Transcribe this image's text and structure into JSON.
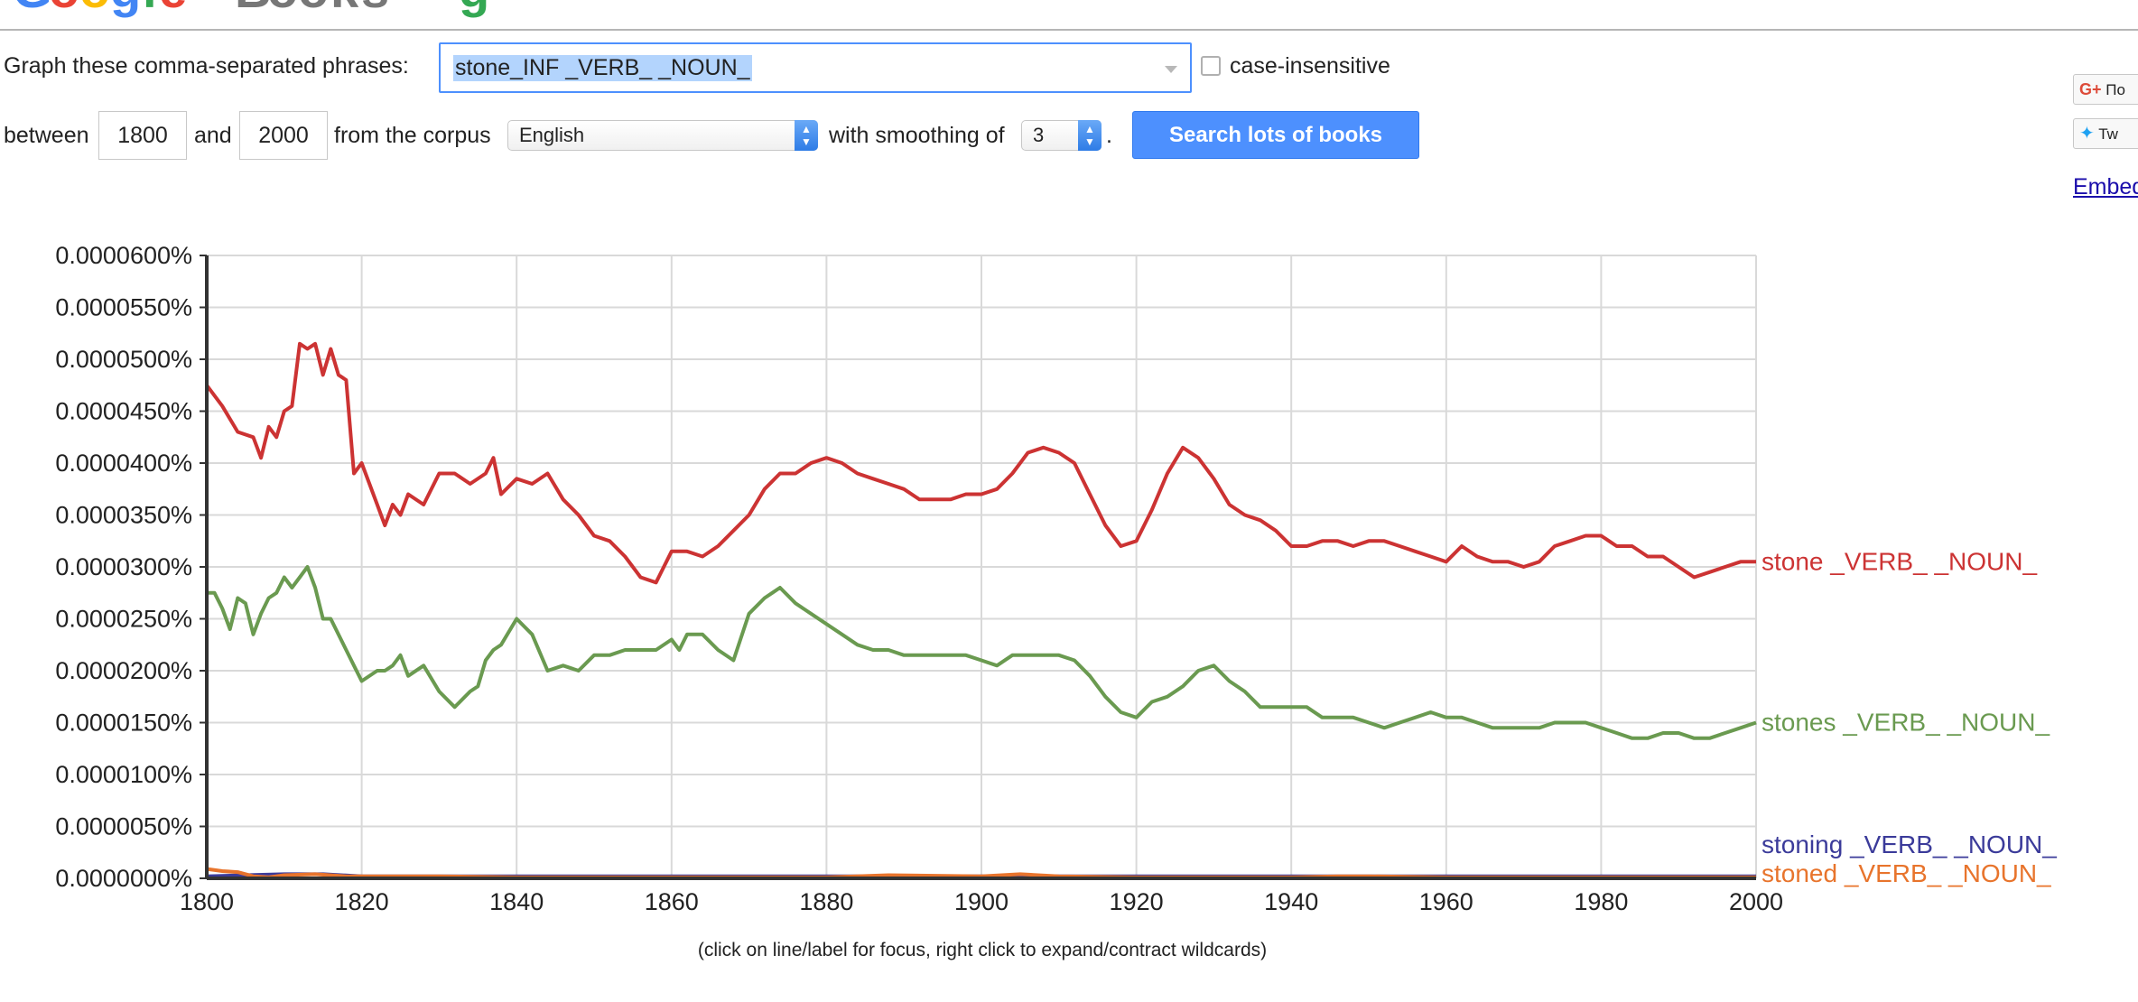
{
  "form": {
    "phrases_label": "Graph these comma-separated phrases:",
    "phrases_value": "stone_INF _VERB_ _NOUN_",
    "case_insensitive_label": "case-insensitive",
    "between_label": "between",
    "start_year": "1800",
    "and_label": "and",
    "end_year": "2000",
    "corpus_label": "from the corpus",
    "corpus_value": "English",
    "smoothing_label": "with smoothing of",
    "smoothing_value": "3",
    "period": ".",
    "search_button": "Search lots of books"
  },
  "share": {
    "gplus_label": "По",
    "twitter_label": "Tw",
    "embed_label": "Embed"
  },
  "footnote": "(click on line/label for focus, right click to expand/contract wildcards)",
  "colors": {
    "stone": "#cc3333",
    "stones": "#6a9a50",
    "stoning": "#3b3b9a",
    "stoned": "#e8742c",
    "accent": "#4d90fe"
  },
  "chart_data": {
    "type": "line",
    "xlim": [
      1800,
      2000
    ],
    "ylim": [
      0,
      6e-05
    ],
    "x_ticks": [
      "1800",
      "1820",
      "1840",
      "1860",
      "1880",
      "1900",
      "1920",
      "1940",
      "1960",
      "1980",
      "2000"
    ],
    "y_ticks": [
      "0.0000000%",
      "0.0000050%",
      "0.0000100%",
      "0.0000150%",
      "0.0000200%",
      "0.0000250%",
      "0.0000300%",
      "0.0000350%",
      "0.0000400%",
      "0.0000450%",
      "0.0000500%",
      "0.0000550%",
      "0.0000600%"
    ],
    "grid": true,
    "series": [
      {
        "name": "stone _VERB_ _NOUN_",
        "color_key": "stone",
        "x": [
          1800,
          1802,
          1804,
          1806,
          1807,
          1808,
          1809,
          1810,
          1811,
          1812,
          1813,
          1814,
          1815,
          1816,
          1817,
          1818,
          1819,
          1820,
          1822,
          1823,
          1824,
          1825,
          1826,
          1828,
          1830,
          1832,
          1834,
          1836,
          1837,
          1838,
          1840,
          1842,
          1844,
          1846,
          1848,
          1850,
          1852,
          1854,
          1856,
          1858,
          1860,
          1862,
          1864,
          1866,
          1868,
          1870,
          1872,
          1874,
          1876,
          1878,
          1880,
          1882,
          1884,
          1886,
          1888,
          1890,
          1892,
          1894,
          1896,
          1898,
          1900,
          1902,
          1904,
          1906,
          1908,
          1910,
          1912,
          1914,
          1916,
          1918,
          1920,
          1922,
          1924,
          1926,
          1928,
          1930,
          1932,
          1934,
          1936,
          1938,
          1940,
          1942,
          1944,
          1946,
          1948,
          1950,
          1952,
          1954,
          1956,
          1958,
          1960,
          1962,
          1964,
          1966,
          1968,
          1970,
          1972,
          1974,
          1976,
          1978,
          1980,
          1982,
          1984,
          1986,
          1988,
          1990,
          1992,
          1994,
          1996,
          1998,
          2000
        ],
        "y": [
          4.75e-05,
          4.55e-05,
          4.3e-05,
          4.25e-05,
          4.05e-05,
          4.35e-05,
          4.25e-05,
          4.5e-05,
          4.55e-05,
          5.15e-05,
          5.1e-05,
          5.15e-05,
          4.85e-05,
          5.1e-05,
          4.85e-05,
          4.8e-05,
          3.9e-05,
          4e-05,
          3.6e-05,
          3.4e-05,
          3.6e-05,
          3.5e-05,
          3.7e-05,
          3.6e-05,
          3.9e-05,
          3.9e-05,
          3.8e-05,
          3.9e-05,
          4.05e-05,
          3.7e-05,
          3.85e-05,
          3.8e-05,
          3.9e-05,
          3.65e-05,
          3.5e-05,
          3.3e-05,
          3.25e-05,
          3.1e-05,
          2.9e-05,
          2.85e-05,
          3.15e-05,
          3.15e-05,
          3.1e-05,
          3.2e-05,
          3.35e-05,
          3.5e-05,
          3.75e-05,
          3.9e-05,
          3.9e-05,
          4e-05,
          4.05e-05,
          4e-05,
          3.9e-05,
          3.85e-05,
          3.8e-05,
          3.75e-05,
          3.65e-05,
          3.65e-05,
          3.65e-05,
          3.7e-05,
          3.7e-05,
          3.75e-05,
          3.9e-05,
          4.1e-05,
          4.15e-05,
          4.1e-05,
          4e-05,
          3.7e-05,
          3.4e-05,
          3.2e-05,
          3.25e-05,
          3.55e-05,
          3.9e-05,
          4.15e-05,
          4.05e-05,
          3.85e-05,
          3.6e-05,
          3.5e-05,
          3.45e-05,
          3.35e-05,
          3.2e-05,
          3.2e-05,
          3.25e-05,
          3.25e-05,
          3.2e-05,
          3.25e-05,
          3.25e-05,
          3.2e-05,
          3.15e-05,
          3.1e-05,
          3.05e-05,
          3.2e-05,
          3.1e-05,
          3.05e-05,
          3.05e-05,
          3e-05,
          3.05e-05,
          3.2e-05,
          3.25e-05,
          3.3e-05,
          3.3e-05,
          3.2e-05,
          3.2e-05,
          3.1e-05,
          3.1e-05,
          3e-05,
          2.9e-05,
          2.95e-05,
          3e-05,
          3.05e-05,
          3.05e-05
        ]
      },
      {
        "name": "stones _VERB_ _NOUN_",
        "color_key": "stones",
        "x": [
          1800,
          1801,
          1802,
          1803,
          1804,
          1805,
          1806,
          1807,
          1808,
          1809,
          1810,
          1811,
          1812,
          1813,
          1814,
          1815,
          1816,
          1818,
          1819,
          1820,
          1822,
          1823,
          1824,
          1825,
          1826,
          1828,
          1830,
          1832,
          1834,
          1835,
          1836,
          1837,
          1838,
          1840,
          1842,
          1844,
          1846,
          1848,
          1850,
          1852,
          1854,
          1856,
          1858,
          1860,
          1861,
          1862,
          1864,
          1866,
          1868,
          1870,
          1872,
          1873,
          1874,
          1876,
          1878,
          1880,
          1882,
          1884,
          1886,
          1888,
          1890,
          1892,
          1894,
          1896,
          1898,
          1900,
          1902,
          1904,
          1906,
          1908,
          1910,
          1912,
          1914,
          1916,
          1918,
          1920,
          1922,
          1924,
          1926,
          1928,
          1930,
          1932,
          1934,
          1936,
          1938,
          1940,
          1942,
          1944,
          1946,
          1948,
          1950,
          1952,
          1954,
          1956,
          1958,
          1960,
          1962,
          1964,
          1966,
          1968,
          1970,
          1972,
          1974,
          1976,
          1978,
          1980,
          1982,
          1984,
          1986,
          1988,
          1990,
          1992,
          1994,
          1996,
          1998,
          2000
        ],
        "y": [
          2.75e-05,
          2.75e-05,
          2.6e-05,
          2.4e-05,
          2.7e-05,
          2.65e-05,
          2.35e-05,
          2.55e-05,
          2.7e-05,
          2.75e-05,
          2.9e-05,
          2.8e-05,
          2.9e-05,
          3e-05,
          2.8e-05,
          2.5e-05,
          2.5e-05,
          2.2e-05,
          2.05e-05,
          1.9e-05,
          2e-05,
          2e-05,
          2.05e-05,
          2.15e-05,
          1.95e-05,
          2.05e-05,
          1.8e-05,
          1.65e-05,
          1.8e-05,
          1.85e-05,
          2.1e-05,
          2.2e-05,
          2.25e-05,
          2.5e-05,
          2.35e-05,
          2e-05,
          2.05e-05,
          2e-05,
          2.15e-05,
          2.15e-05,
          2.2e-05,
          2.2e-05,
          2.2e-05,
          2.3e-05,
          2.2e-05,
          2.35e-05,
          2.35e-05,
          2.2e-05,
          2.1e-05,
          2.55e-05,
          2.7e-05,
          2.75e-05,
          2.8e-05,
          2.65e-05,
          2.55e-05,
          2.45e-05,
          2.35e-05,
          2.25e-05,
          2.2e-05,
          2.2e-05,
          2.15e-05,
          2.15e-05,
          2.15e-05,
          2.15e-05,
          2.15e-05,
          2.1e-05,
          2.05e-05,
          2.15e-05,
          2.15e-05,
          2.15e-05,
          2.15e-05,
          2.1e-05,
          1.95e-05,
          1.75e-05,
          1.6e-05,
          1.55e-05,
          1.7e-05,
          1.75e-05,
          1.85e-05,
          2e-05,
          2.05e-05,
          1.9e-05,
          1.8e-05,
          1.65e-05,
          1.65e-05,
          1.65e-05,
          1.65e-05,
          1.55e-05,
          1.55e-05,
          1.55e-05,
          1.5e-05,
          1.45e-05,
          1.5e-05,
          1.55e-05,
          1.6e-05,
          1.55e-05,
          1.55e-05,
          1.5e-05,
          1.45e-05,
          1.45e-05,
          1.45e-05,
          1.45e-05,
          1.5e-05,
          1.5e-05,
          1.5e-05,
          1.45e-05,
          1.4e-05,
          1.35e-05,
          1.35e-05,
          1.4e-05,
          1.4e-05,
          1.35e-05,
          1.35e-05,
          1.4e-05,
          1.45e-05,
          1.5e-05
        ]
      },
      {
        "name": "stoning _VERB_ _NOUN_",
        "color_key": "stoning",
        "x": [
          1800,
          1805,
          1810,
          1815,
          1820,
          1830,
          1840,
          1860,
          1880,
          1900,
          1920,
          1940,
          1960,
          1980,
          2000
        ],
        "y": [
          2e-07,
          3e-07,
          4e-07,
          4e-07,
          2e-07,
          2e-07,
          2e-07,
          2e-07,
          2e-07,
          2e-07,
          2e-07,
          2e-07,
          2e-07,
          2e-07,
          2e-07
        ]
      },
      {
        "name": "stoned _VERB_ _NOUN_",
        "color_key": "stoned",
        "x": [
          1800,
          1802,
          1804,
          1806,
          1808,
          1810,
          1814,
          1818,
          1822,
          1830,
          1840,
          1860,
          1880,
          1888,
          1900,
          1905,
          1910,
          1920,
          1940,
          1946,
          1950,
          1960,
          1980,
          2000
        ],
        "y": [
          9e-07,
          7e-07,
          6e-07,
          2e-07,
          1e-07,
          3e-07,
          4e-07,
          2e-07,
          2e-07,
          2e-07,
          1e-07,
          1e-07,
          1e-07,
          3e-07,
          2e-07,
          4e-07,
          2e-07,
          1e-07,
          1e-07,
          2e-07,
          2e-07,
          1e-07,
          1e-07,
          1e-07
        ]
      }
    ]
  }
}
